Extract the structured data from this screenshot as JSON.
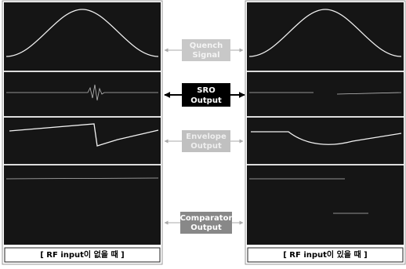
{
  "labels": [
    {
      "lines": [
        "Quench",
        "Signal"
      ]
    },
    {
      "lines": [
        "SRO",
        "Output"
      ]
    },
    {
      "lines": [
        "Envelope",
        "Output"
      ]
    },
    {
      "lines": [
        "Comparator",
        "Output"
      ]
    }
  ],
  "captions": [
    "[ RF input이 없을 때 ]",
    "[ RF input이 있을 때 ]"
  ]
}
